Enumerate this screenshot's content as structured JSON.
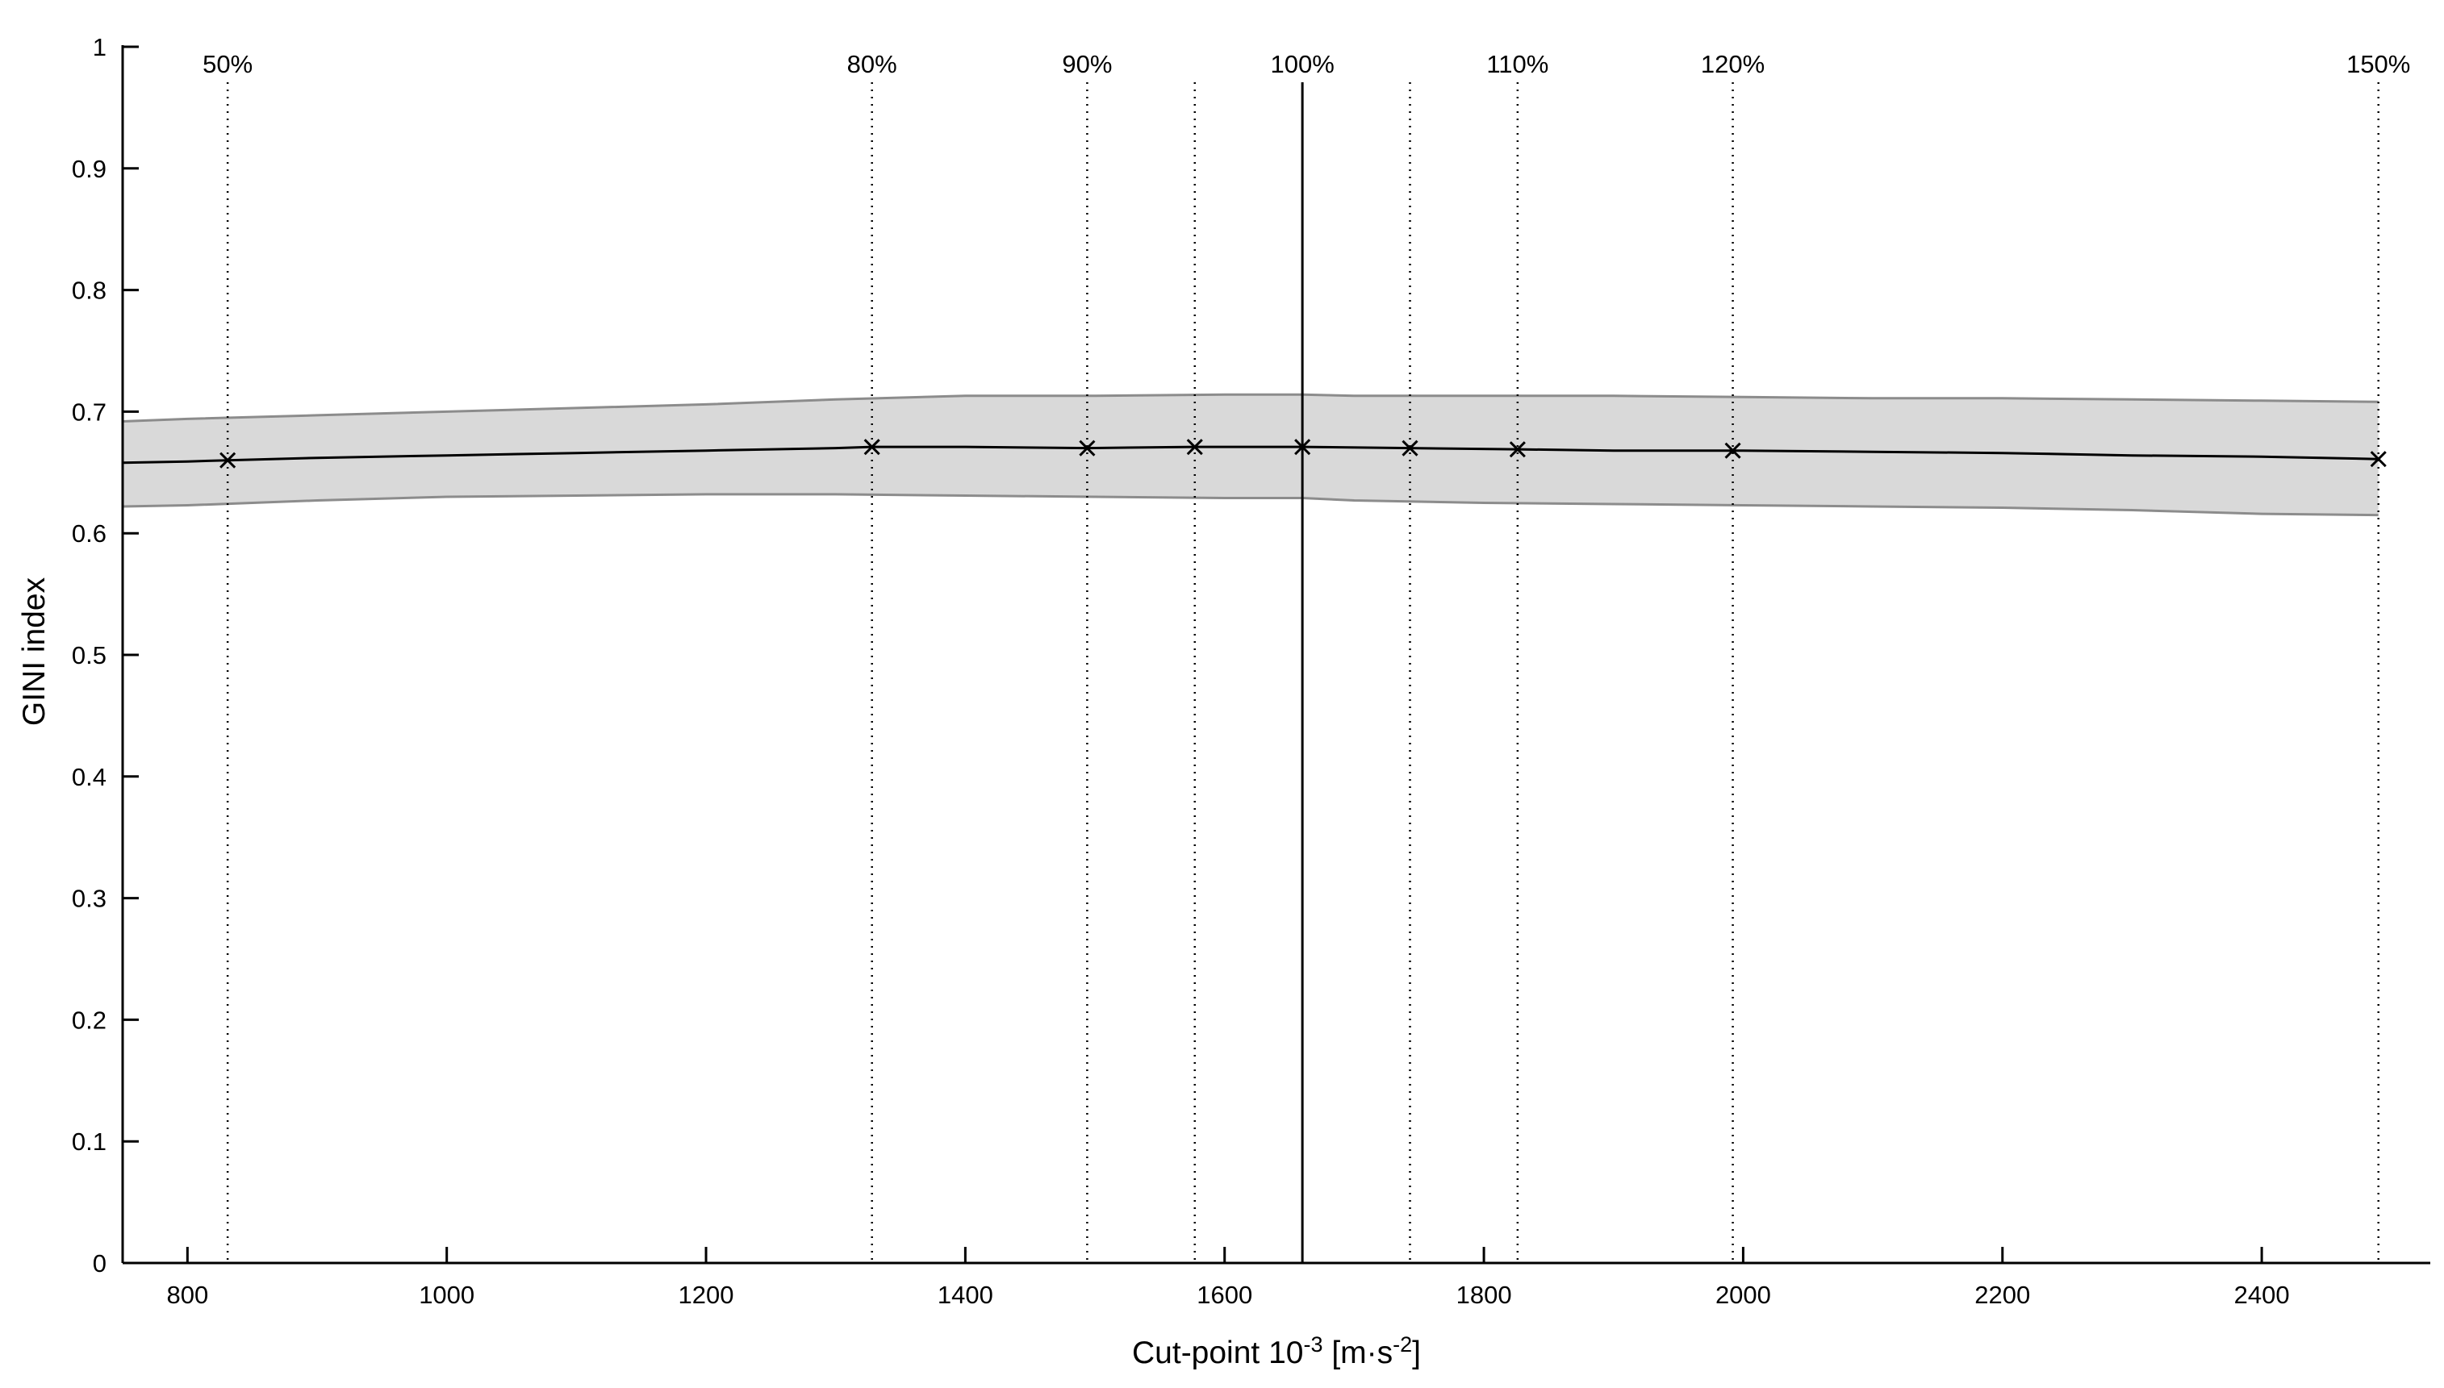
{
  "chart_data": {
    "type": "line",
    "title": "",
    "xlabel": "Cut-point 10",
    "xlabel_exponent": "-3",
    "xlabel_unit_open": " [m·s",
    "xlabel_unit_exponent": "-2",
    "xlabel_unit_close": "]",
    "ylabel": "GINI index",
    "xlim": [
      750,
      2530
    ],
    "ylim": [
      0,
      1
    ],
    "grid": false,
    "x_ticks": [
      800,
      1000,
      1200,
      1400,
      1600,
      1800,
      2000,
      2200,
      2400
    ],
    "x_tick_labels": [
      "800",
      "1000",
      "1200",
      "1400",
      "1600",
      "1800",
      "2000",
      "2200",
      "2400"
    ],
    "y_ticks": [
      0,
      0.1,
      0.2,
      0.3,
      0.4,
      0.5,
      0.6,
      0.7,
      0.8,
      0.9,
      1
    ],
    "y_tick_labels": [
      "0",
      "0.1",
      "0.2",
      "0.3",
      "0.4",
      "0.5",
      "0.6",
      "0.7",
      "0.8",
      "0.9",
      "1"
    ],
    "reference_line": {
      "x": 1660
    },
    "percent_lines": [
      {
        "x": 831,
        "label": "50%"
      },
      {
        "x": 1328,
        "label": "80%"
      },
      {
        "x": 1494,
        "label": "90%"
      },
      {
        "x": 1577,
        "label": ""
      },
      {
        "x": 1743,
        "label": ""
      },
      {
        "x": 1826,
        "label": "110%"
      },
      {
        "x": 1992,
        "label": "120%"
      },
      {
        "x": 2490,
        "label": "150%"
      }
    ],
    "series": [
      {
        "x": [
          750,
          800,
          831,
          900,
          1000,
          1100,
          1200,
          1300,
          1328,
          1400,
          1494,
          1577,
          1660,
          1743,
          1826,
          1900,
          1992,
          2100,
          2200,
          2300,
          2400,
          2490
        ],
        "values": [
          0.658,
          0.659,
          0.66,
          0.662,
          0.664,
          0.666,
          0.668,
          0.67,
          0.671,
          0.671,
          0.67,
          0.671,
          0.671,
          0.67,
          0.669,
          0.668,
          0.668,
          0.667,
          0.666,
          0.664,
          0.663,
          0.661
        ]
      }
    ],
    "markers": {
      "symbol": "x",
      "x": [
        831,
        1328,
        1494,
        1577,
        1660,
        1743,
        1826,
        1992,
        2490
      ],
      "values": [
        0.66,
        0.671,
        0.67,
        0.671,
        0.671,
        0.67,
        0.669,
        0.668,
        0.661
      ]
    },
    "band": {
      "x": [
        750,
        800,
        900,
        1000,
        1100,
        1200,
        1300,
        1400,
        1500,
        1600,
        1660,
        1700,
        1800,
        1900,
        2000,
        2100,
        2200,
        2300,
        2400,
        2490
      ],
      "upper": [
        0.692,
        0.694,
        0.697,
        0.7,
        0.703,
        0.706,
        0.71,
        0.713,
        0.713,
        0.714,
        0.714,
        0.713,
        0.713,
        0.713,
        0.712,
        0.711,
        0.711,
        0.71,
        0.709,
        0.708
      ],
      "lower": [
        0.622,
        0.623,
        0.627,
        0.63,
        0.631,
        0.632,
        0.632,
        0.631,
        0.63,
        0.629,
        0.629,
        0.627,
        0.625,
        0.624,
        0.623,
        0.622,
        0.621,
        0.619,
        0.616,
        0.615
      ]
    },
    "colors": {
      "line": "#000000",
      "band_fill": "#d9d9d9",
      "band_edge": "#8c8c8c",
      "axis": "#000000"
    }
  }
}
